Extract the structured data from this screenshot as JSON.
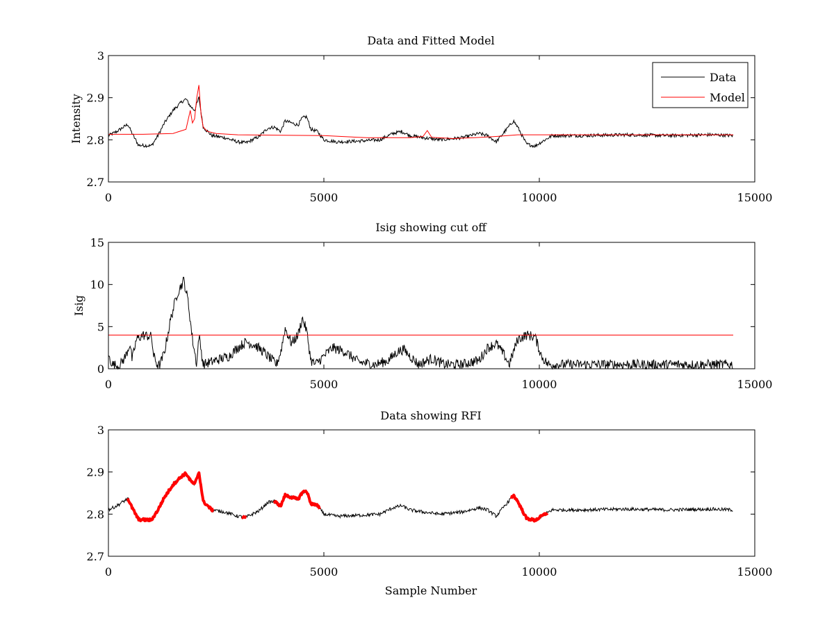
{
  "chart_data": [
    {
      "type": "line",
      "title": "Data and Fitted Model",
      "xlabel": "",
      "ylabel": "Intensity",
      "xlim": [
        0,
        15000
      ],
      "ylim": [
        2.7,
        3.0
      ],
      "xticks": [
        "0",
        "5000",
        "10000",
        "15000"
      ],
      "yticks": [
        "2.7",
        "2.8",
        "2.9",
        "3"
      ],
      "legend": {
        "position": "top-right",
        "entries": [
          "Data",
          "Model"
        ]
      },
      "series": [
        {
          "name": "Data",
          "color": "#000000",
          "x": [
            0,
            200,
            450,
            550,
            700,
            1000,
            1150,
            1300,
            1500,
            1700,
            1800,
            1900,
            2000,
            2100,
            2200,
            2400,
            2700,
            3000,
            3200,
            3500,
            3700,
            3850,
            4000,
            4100,
            4250,
            4400,
            4500,
            4600,
            4700,
            4850,
            5000,
            5300,
            5800,
            6300,
            6600,
            6800,
            7000,
            7300,
            7700,
            8200,
            8600,
            8800,
            9000,
            9200,
            9400,
            9500,
            9700,
            9900,
            10050,
            10300,
            11000,
            12000,
            13000,
            14000,
            14500
          ],
          "y": [
            2.81,
            2.82,
            2.837,
            2.815,
            2.787,
            2.786,
            2.81,
            2.84,
            2.87,
            2.89,
            2.897,
            2.88,
            2.87,
            2.9,
            2.83,
            2.81,
            2.805,
            2.795,
            2.793,
            2.808,
            2.828,
            2.83,
            2.82,
            2.845,
            2.84,
            2.835,
            2.852,
            2.855,
            2.825,
            2.82,
            2.8,
            2.795,
            2.797,
            2.8,
            2.815,
            2.82,
            2.81,
            2.805,
            2.8,
            2.805,
            2.815,
            2.81,
            2.795,
            2.82,
            2.845,
            2.83,
            2.79,
            2.785,
            2.795,
            2.81,
            2.81,
            2.812,
            2.81,
            2.812,
            2.81
          ]
        },
        {
          "name": "Model",
          "color": "#ff0000",
          "x": [
            0,
            800,
            1500,
            1800,
            1900,
            1950,
            2000,
            2050,
            2100,
            2150,
            2200,
            2300,
            2500,
            3000,
            4000,
            5000,
            6000,
            7000,
            7300,
            7400,
            7500,
            8000,
            8500,
            9000,
            9500,
            10000,
            11000,
            12000,
            13000,
            14000,
            14500
          ],
          "y": [
            2.813,
            2.813,
            2.815,
            2.825,
            2.87,
            2.84,
            2.85,
            2.9,
            2.93,
            2.86,
            2.83,
            2.82,
            2.815,
            2.812,
            2.811,
            2.81,
            2.805,
            2.805,
            2.808,
            2.822,
            2.806,
            2.803,
            2.805,
            2.808,
            2.812,
            2.812,
            2.812,
            2.812,
            2.812,
            2.812,
            2.812
          ]
        }
      ]
    },
    {
      "type": "line",
      "title": "Isig showing cut off",
      "xlabel": "",
      "ylabel": "Isig",
      "xlim": [
        0,
        15000
      ],
      "ylim": [
        0,
        15
      ],
      "xticks": [
        "0",
        "5000",
        "10000",
        "15000"
      ],
      "yticks": [
        "0",
        "5",
        "10",
        "15"
      ],
      "series": [
        {
          "name": "Isig",
          "color": "#000000",
          "x": [
            0,
            100,
            250,
            400,
            500,
            550,
            650,
            800,
            1000,
            1050,
            1150,
            1200,
            1300,
            1450,
            1600,
            1750,
            1850,
            1950,
            2050,
            2100,
            2200,
            2500,
            2800,
            3000,
            3200,
            3400,
            3600,
            3800,
            3900,
            4000,
            4100,
            4250,
            4400,
            4500,
            4600,
            4700,
            4800,
            5000,
            5200,
            5500,
            5800,
            6200,
            6500,
            6700,
            6850,
            7000,
            7200,
            7500,
            7800,
            8200,
            8600,
            8800,
            9000,
            9200,
            9300,
            9500,
            9700,
            9900,
            10050,
            10200,
            11000,
            12000,
            13000,
            14000,
            14500
          ],
          "y": [
            1.5,
            0.5,
            0.3,
            1.5,
            3.0,
            1.0,
            3.5,
            4.0,
            3.8,
            1.5,
            0.3,
            0.5,
            2.0,
            6.0,
            9.0,
            10.5,
            8.0,
            3.5,
            0.5,
            4.0,
            0.5,
            1.0,
            1.5,
            2.5,
            3.2,
            2.8,
            2.0,
            1.0,
            0.5,
            2.0,
            4.8,
            3.0,
            4.0,
            6.0,
            4.5,
            1.0,
            0.5,
            1.5,
            2.5,
            2.0,
            0.8,
            0.5,
            1.0,
            2.0,
            2.3,
            1.5,
            0.5,
            1.2,
            0.5,
            0.5,
            1.0,
            2.5,
            3.0,
            1.5,
            0.5,
            3.5,
            4.0,
            3.8,
            1.5,
            0.5,
            0.5,
            0.5,
            0.5,
            0.5,
            0.5
          ]
        },
        {
          "name": "Cut off",
          "color": "#ff0000",
          "x": [
            0,
            14500
          ],
          "y": [
            4,
            4
          ]
        }
      ]
    },
    {
      "type": "line",
      "title": "Data showing RFI",
      "xlabel": "Sample Number",
      "ylabel": "",
      "xlim": [
        0,
        15000
      ],
      "ylim": [
        2.7,
        3.0
      ],
      "xticks": [
        "0",
        "5000",
        "10000",
        "15000"
      ],
      "yticks": [
        "2.7",
        "2.8",
        "2.9",
        "3"
      ],
      "series": [
        {
          "name": "Data",
          "color": "#000000",
          "x": [
            0,
            200,
            450,
            550,
            700,
            1000,
            1150,
            1300,
            1500,
            1700,
            1800,
            1900,
            2000,
            2100,
            2200,
            2400,
            2700,
            3000,
            3200,
            3500,
            3700,
            3850,
            4000,
            4100,
            4250,
            4400,
            4500,
            4600,
            4700,
            4850,
            5000,
            5300,
            5800,
            6300,
            6600,
            6800,
            7000,
            7300,
            7700,
            8200,
            8600,
            8800,
            9000,
            9200,
            9400,
            9500,
            9700,
            9900,
            10050,
            10300,
            11000,
            12000,
            13000,
            14000,
            14500
          ],
          "y": [
            2.81,
            2.82,
            2.837,
            2.815,
            2.787,
            2.786,
            2.81,
            2.84,
            2.87,
            2.89,
            2.897,
            2.88,
            2.87,
            2.9,
            2.83,
            2.81,
            2.805,
            2.795,
            2.793,
            2.808,
            2.828,
            2.83,
            2.82,
            2.845,
            2.84,
            2.835,
            2.852,
            2.855,
            2.825,
            2.82,
            2.8,
            2.795,
            2.797,
            2.8,
            2.815,
            2.82,
            2.81,
            2.805,
            2.8,
            2.805,
            2.815,
            2.81,
            2.795,
            2.82,
            2.845,
            2.83,
            2.79,
            2.785,
            2.795,
            2.81,
            2.81,
            2.812,
            2.81,
            2.812,
            2.81
          ]
        }
      ],
      "rfi_ranges": [
        [
          450,
          2450
        ],
        [
          3100,
          3200
        ],
        [
          3850,
          4900
        ],
        [
          9350,
          10200
        ]
      ],
      "rfi_color": "#ff0000"
    }
  ]
}
